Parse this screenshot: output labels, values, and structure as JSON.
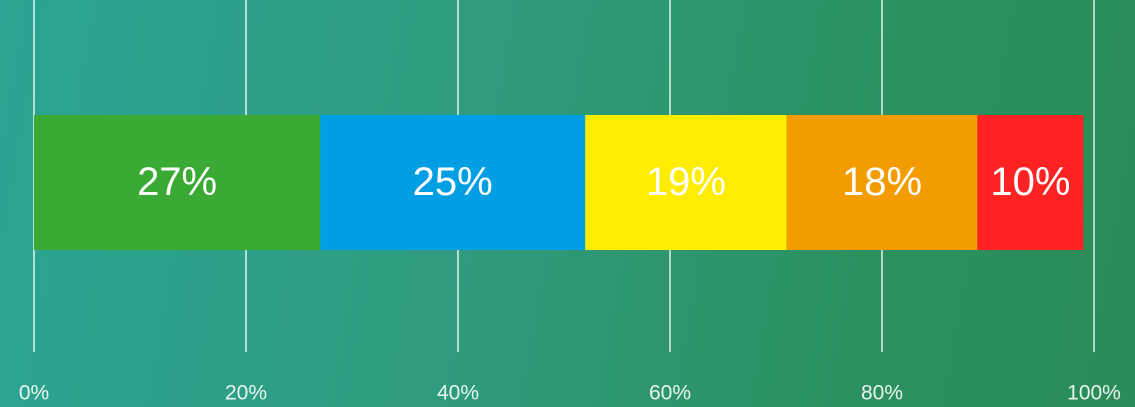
{
  "chart_data": {
    "type": "stacked-bar",
    "orientation": "horizontal",
    "series": [
      {
        "color": "#3aaa35",
        "values": [
          27
        ],
        "value_labels": [
          "27%"
        ]
      },
      {
        "color": "#009fe3",
        "values": [
          25
        ],
        "value_labels": [
          "25%"
        ]
      },
      {
        "color": "#ffed00",
        "values": [
          19
        ],
        "value_labels": [
          "19%"
        ]
      },
      {
        "color": "#f39c00",
        "values": [
          18
        ],
        "value_labels": [
          "18%"
        ]
      },
      {
        "color": "#ff2222",
        "values": [
          10
        ],
        "value_labels": [
          "10%"
        ]
      }
    ],
    "xlim": [
      0,
      100
    ],
    "xticks": [
      {
        "value": 0,
        "label": "0%"
      },
      {
        "value": 20,
        "label": "20%"
      },
      {
        "value": 40,
        "label": "40%"
      },
      {
        "value": 60,
        "label": "60%"
      },
      {
        "value": 80,
        "label": "80%"
      },
      {
        "value": 100,
        "label": "100%"
      }
    ],
    "grid": true
  }
}
